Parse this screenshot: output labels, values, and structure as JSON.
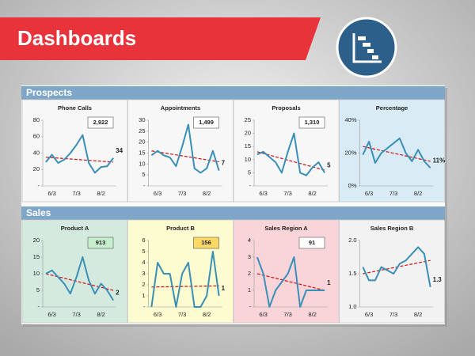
{
  "header": {
    "title": "Dashboards"
  },
  "sections": [
    {
      "title": "Prospects"
    },
    {
      "title": "Sales"
    }
  ],
  "chart_data": [
    {
      "type": "line",
      "title": "Phone Calls",
      "background": "#f7f7f7",
      "color": "#3a8fb7",
      "trend_color": "#d01010",
      "categories": [
        null,
        "6/3",
        null,
        null,
        null,
        "7/3",
        null,
        null,
        null,
        "8/2",
        null,
        null
      ],
      "values": [
        29,
        38,
        28,
        32,
        40,
        50,
        62,
        28,
        16,
        23,
        24,
        34
      ],
      "trend": [
        35,
        29
      ],
      "ylim": [
        0,
        80
      ],
      "yticks": [
        {
          "value": 0,
          "label": "-"
        },
        20,
        40,
        60,
        80
      ],
      "total": "2,922",
      "box_color": "#ffffff"
    },
    {
      "type": "line",
      "title": "Appointments",
      "background": "#f7f7f7",
      "color": "#3a8fb7",
      "trend_color": "#d01010",
      "categories": [
        null,
        "6/3",
        null,
        null,
        null,
        "7/3",
        null,
        null,
        null,
        "8/2",
        null,
        null
      ],
      "values": [
        14,
        16,
        14,
        13,
        9,
        18,
        28,
        8,
        6,
        8,
        16,
        7
      ],
      "trend": [
        16,
        11
      ],
      "ylim": [
        0,
        30
      ],
      "yticks": [
        {
          "value": 0,
          "label": "-"
        },
        5,
        10,
        15,
        20,
        25,
        30
      ],
      "total": "1,499",
      "box_color": "#ffffff"
    },
    {
      "type": "line",
      "title": "Proposals",
      "background": "#f7f7f7",
      "color": "#3a8fb7",
      "trend_color": "#d01010",
      "categories": [
        null,
        "6/3",
        null,
        null,
        null,
        "7/3",
        null,
        null,
        null,
        "8/2",
        null,
        null
      ],
      "values": [
        12,
        13,
        11,
        9,
        5,
        13,
        20,
        5,
        4,
        7,
        9,
        5
      ],
      "trend": [
        13,
        6
      ],
      "ylim": [
        0,
        25
      ],
      "yticks": [
        {
          "value": 0,
          "label": "-"
        },
        5,
        10,
        15,
        20,
        25
      ],
      "total": "1,310",
      "box_color": "#ffffff"
    },
    {
      "type": "line",
      "title": "Percentage",
      "background": "#d9ecf5",
      "color": "#3a8fb7",
      "trend_color": "#d01010",
      "categories": [
        null,
        "6/3",
        null,
        null,
        null,
        "7/3",
        null,
        null,
        null,
        "8/2",
        null,
        null
      ],
      "values": [
        19,
        27,
        14,
        20,
        23,
        26,
        29,
        20,
        15,
        22,
        15,
        11
      ],
      "trend": [
        24,
        15
      ],
      "end_label": "11%",
      "ylim": [
        0,
        40
      ],
      "yticks": [
        {
          "value": 0,
          "label": "0%"
        },
        {
          "value": 20,
          "label": "20%"
        },
        {
          "value": 40,
          "label": "40%"
        }
      ]
    },
    {
      "type": "line",
      "title": "Product A",
      "background": "#d5eadf",
      "color": "#3a8fb7",
      "trend_color": "#d01010",
      "categories": [
        null,
        "6/3",
        null,
        null,
        null,
        "7/3",
        null,
        null,
        null,
        "8/2",
        null,
        null
      ],
      "values": [
        10,
        11,
        9,
        7,
        4,
        9,
        15,
        8,
        4,
        7,
        5,
        2
      ],
      "trend": [
        10,
        5
      ],
      "ylim": [
        0,
        20
      ],
      "yticks": [
        {
          "value": 0,
          "label": "-"
        },
        5,
        10,
        15,
        20
      ],
      "total": "913",
      "box_color": "#c6efce"
    },
    {
      "type": "line",
      "title": "Product B",
      "background": "#fdfbd0",
      "color": "#3a8fb7",
      "trend_color": "#d01010",
      "categories": [
        null,
        "6/3",
        null,
        null,
        null,
        "7/3",
        null,
        null,
        null,
        "8/2",
        null,
        null
      ],
      "values": [
        0,
        4,
        3,
        3,
        0,
        3,
        4,
        0,
        0,
        1,
        5,
        1
      ],
      "trend": [
        1.8,
        1.9
      ],
      "ylim": [
        0,
        6
      ],
      "yticks": [
        {
          "value": 0,
          "label": "-"
        },
        1,
        2,
        3,
        4,
        5,
        6
      ],
      "total": "156",
      "box_color": "#ffd966"
    },
    {
      "type": "line",
      "title": "Sales Region A",
      "background": "#f9d5da",
      "color": "#3a8fb7",
      "trend_color": "#d01010",
      "categories": [
        null,
        "6/3",
        null,
        null,
        null,
        "7/3",
        null,
        null,
        null,
        "8/2",
        null,
        null
      ],
      "values": [
        3,
        2,
        0,
        1,
        1.5,
        2,
        3,
        0,
        1,
        1,
        1,
        1
      ],
      "trend": [
        2,
        1
      ],
      "ylim": [
        0,
        4
      ],
      "yticks": [
        {
          "value": 0,
          "label": "-"
        },
        1,
        2,
        3,
        4
      ],
      "total": "91",
      "box_color": "#ffffff"
    },
    {
      "type": "line",
      "title": "Sales Region B",
      "background": "#f2f2f2",
      "color": "#3a8fb7",
      "trend_color": "#d01010",
      "categories": [
        null,
        "6/3",
        null,
        null,
        null,
        "7/3",
        null,
        null,
        null,
        "8/2",
        null,
        null
      ],
      "values": [
        1.6,
        1.4,
        1.4,
        1.6,
        1.55,
        1.5,
        1.65,
        1.7,
        1.8,
        1.9,
        1.8,
        1.3
      ],
      "trend": [
        1.5,
        1.7
      ],
      "ylim": [
        1,
        2
      ],
      "yticks": [
        {
          "value": 1,
          "label": "1.0"
        },
        1.5,
        {
          "value": 2,
          "label": "2.0"
        }
      ]
    }
  ]
}
